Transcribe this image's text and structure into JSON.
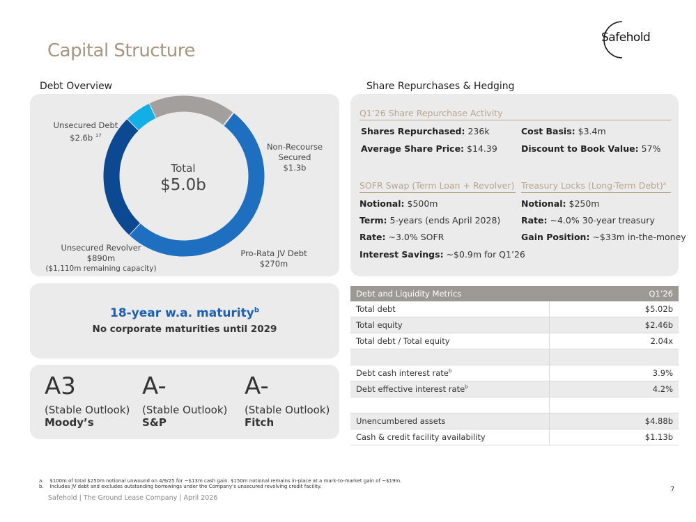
{
  "page": {
    "title": "Capital Structure",
    "logo_text": "Safehold",
    "page_number": "7",
    "footer": "Safehold | The Ground Lease Company | April 2026"
  },
  "debt_overview": {
    "section_title": "Debt Overview",
    "total_label": "Total",
    "total_value": "$5.0b",
    "segments": [
      {
        "name": "Unsecured Debt",
        "value_label": "$2.6b",
        "note": "17",
        "value": 2.6,
        "color": "#1f6fc0"
      },
      {
        "name": "Non-Recourse Secured",
        "name_line1": "Non-Recourse",
        "name_line2": "Secured",
        "value_label": "$1.3b",
        "value": 1.3,
        "color": "#0b4a93"
      },
      {
        "name": "Pro-Rata JV Debt",
        "value_label": "$270m",
        "value": 0.27,
        "color": "#12aee6"
      },
      {
        "name": "Unsecured Revolver",
        "value_label": "$890m",
        "extra": "($1,110m remaining capacity)",
        "value": 0.89,
        "color": "#a39f9c"
      }
    ]
  },
  "maturity": {
    "title": "18-year w.a. maturity",
    "title_note": "b",
    "subtitle": "No corporate maturities until 2029"
  },
  "ratings": [
    {
      "grade": "A3",
      "outlook": "(Stable Outlook)",
      "agency": "Moody’s"
    },
    {
      "grade": "A-",
      "outlook": "(Stable Outlook)",
      "agency": "S&P"
    },
    {
      "grade": "A-",
      "outlook": "(Stable Outlook)",
      "agency": "Fitch"
    }
  ],
  "hedging": {
    "section_title": "Share Repurchases & Hedging",
    "repurchase": {
      "heading": "Q1’26 Share Repurchase Activity",
      "shares_label": "Shares Repurchased:",
      "shares_value": "236k",
      "cost_label": "Cost Basis:",
      "cost_value": "$3.4m",
      "avg_label": "Average Share Price:",
      "avg_value": "$14.39",
      "discount_label": "Discount to Book Value:",
      "discount_value": "57%"
    },
    "sofr": {
      "heading": "SOFR Swap (Term Loan + Revolver)",
      "notional_label": "Notional:",
      "notional_value": "$500m",
      "term_label": "Term:",
      "term_value": "5-years (ends April 2028)",
      "rate_label": "Rate:",
      "rate_value": "~3.0% SOFR",
      "savings_label": "Interest Savings:",
      "savings_value": "~$0.9m for Q1’26"
    },
    "treasury": {
      "heading": "Treasury Locks (Long-Term Debt)",
      "heading_note": "a",
      "notional_label": "Notional:",
      "notional_value": "$250m",
      "rate_label": "Rate:",
      "rate_value": "~4.0% 30-year treasury",
      "gain_label": "Gain Position:",
      "gain_value": "~$33m in-the-money"
    }
  },
  "metrics_table": {
    "header_label": "Debt and Liquidity Metrics",
    "header_period": "Q1’26",
    "rows": [
      {
        "label": "Total debt",
        "value": "$5.02b",
        "note": ""
      },
      {
        "label": "Total equity",
        "value": "$2.46b",
        "note": ""
      },
      {
        "label": "Total debt / Total equity",
        "value": "2.04x",
        "note": ""
      },
      {
        "label": "",
        "value": "",
        "note": ""
      },
      {
        "label": "Debt cash interest rate",
        "value": "3.9%",
        "note": "b"
      },
      {
        "label": "Debt effective interest rate",
        "value": "4.2%",
        "note": "b"
      },
      {
        "label": "",
        "value": "",
        "note": ""
      },
      {
        "label": "Unencumbered assets",
        "value": "$4.88b",
        "note": ""
      },
      {
        "label": "Cash & credit facility availability",
        "value": "$1.13b",
        "note": ""
      }
    ]
  },
  "footnotes": [
    {
      "marker": "a.",
      "text": "$100m of total $250m notional unwound on 4/9/25 for ~$13m cash gain. $150m notional remains in-place at a mark-to-market gain of ~$19m."
    },
    {
      "marker": "b.",
      "text": "Includes JV debt and excludes outstanding borrowings under the Company’s unsecured revolving credit facility."
    }
  ]
}
